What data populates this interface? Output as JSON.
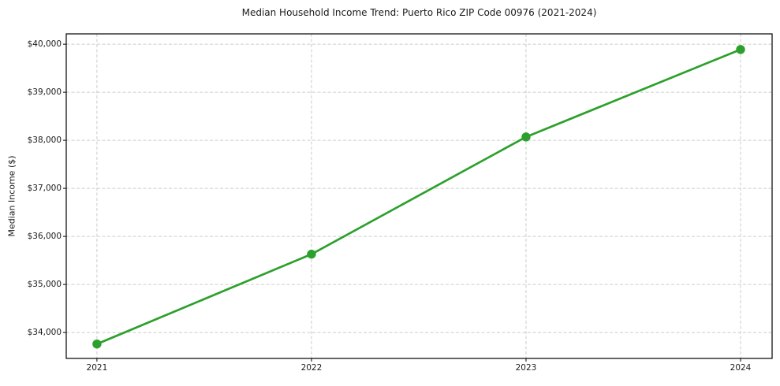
{
  "figure": {
    "title": "Median Household Income Trend: Puerto Rico ZIP Code 00976 (2021-2024)"
  },
  "chart_data": {
    "type": "line",
    "title": "Median Household Income Trend: Puerto Rico ZIP Code 00976 (2021-2024)",
    "xlabel": "",
    "ylabel": "Median Income ($)",
    "x": [
      2021,
      2022,
      2023,
      2024
    ],
    "series": [
      {
        "name": "Median Household Income",
        "values": [
          33760,
          35630,
          38070,
          39890
        ]
      }
    ],
    "xticks": {
      "values": [
        2021,
        2022,
        2023,
        2024
      ],
      "labels": [
        "2021",
        "2022",
        "2023",
        "2024"
      ]
    },
    "yticks": {
      "values": [
        34000,
        35000,
        36000,
        37000,
        38000,
        39000,
        40000
      ],
      "labels": [
        "$34,000",
        "$35,000",
        "$36,000",
        "$37,000",
        "$38,000",
        "$39,000",
        "$40,000"
      ]
    },
    "xlim": [
      2020.857,
      2024.147
    ],
    "ylim": [
      33460,
      40215
    ],
    "grid": true,
    "grid_style": "dashed",
    "legend_position": "none",
    "line_color": "#2ca02c",
    "marker": "circle",
    "grid_color": "#cccccc",
    "axis_color": "#000000",
    "background": "#ffffff"
  }
}
